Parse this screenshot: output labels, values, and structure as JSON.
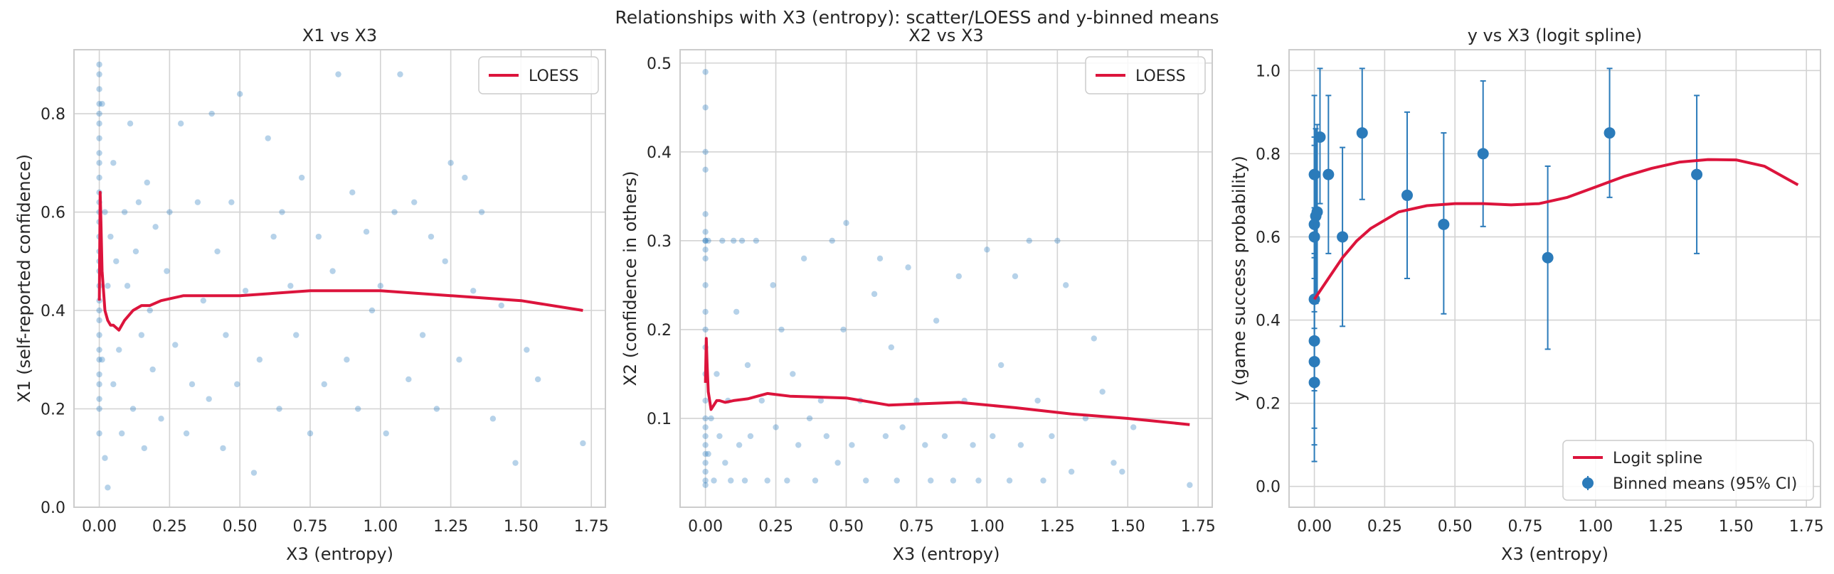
{
  "suptitle": "Relationships with X3 (entropy): scatter/LOESS and y-binned means",
  "colors": {
    "scatter": "#2f7fc1",
    "loess": "#dc143c",
    "binned": "#2b7bba",
    "grid": "#d3d3d3",
    "frame": "#cccccc"
  },
  "chart_data": [
    {
      "type": "scatter",
      "title": "X1 vs X3",
      "xlabel": "X3 (entropy)",
      "ylabel": "X1 (self-reported confidence)",
      "xlim": [
        -0.09,
        1.8
      ],
      "ylim": [
        0.0,
        0.93
      ],
      "xticks": [
        0.0,
        0.25,
        0.5,
        0.75,
        1.0,
        1.25,
        1.5,
        1.75
      ],
      "xtick_labels": [
        "0.00",
        "0.25",
        "0.50",
        "0.75",
        "1.00",
        "1.25",
        "1.50",
        "1.75"
      ],
      "yticks": [
        0.0,
        0.2,
        0.4,
        0.6,
        0.8
      ],
      "ytick_labels": [
        "0.0",
        "0.2",
        "0.4",
        "0.6",
        "0.8"
      ],
      "grid": true,
      "legend": {
        "placement": "top-right",
        "entries": [
          "LOESS"
        ]
      },
      "series": [
        {
          "name": "LOESS",
          "kind": "line",
          "x": [
            0.0,
            0.003,
            0.006,
            0.01,
            0.015,
            0.02,
            0.03,
            0.04,
            0.05,
            0.07,
            0.09,
            0.12,
            0.15,
            0.18,
            0.22,
            0.3,
            0.5,
            0.75,
            1.0,
            1.25,
            1.5,
            1.72
          ],
          "y": [
            0.42,
            0.64,
            0.58,
            0.48,
            0.44,
            0.4,
            0.38,
            0.37,
            0.37,
            0.36,
            0.38,
            0.4,
            0.41,
            0.41,
            0.42,
            0.43,
            0.43,
            0.44,
            0.44,
            0.43,
            0.42,
            0.4
          ]
        },
        {
          "kind": "scatter",
          "x": [
            0.0,
            0.0,
            0.0,
            0.0,
            0.0,
            0.0,
            0.0,
            0.0,
            0.0,
            0.0,
            0.0,
            0.0,
            0.0,
            0.0,
            0.0,
            0.0,
            0.0,
            0.0,
            0.0,
            0.0,
            0.0,
            0.0,
            0.0,
            0.0,
            0.0,
            0.0,
            0.0,
            0.0,
            0.0,
            0.0,
            0.01,
            0.01,
            0.02,
            0.02,
            0.03,
            0.03,
            0.04,
            0.05,
            0.05,
            0.06,
            0.07,
            0.08,
            0.09,
            0.1,
            0.11,
            0.12,
            0.13,
            0.14,
            0.15,
            0.16,
            0.17,
            0.18,
            0.19,
            0.2,
            0.22,
            0.24,
            0.25,
            0.27,
            0.29,
            0.31,
            0.33,
            0.35,
            0.37,
            0.39,
            0.4,
            0.42,
            0.44,
            0.45,
            0.47,
            0.49,
            0.5,
            0.52,
            0.55,
            0.57,
            0.6,
            0.62,
            0.64,
            0.65,
            0.68,
            0.7,
            0.72,
            0.75,
            0.78,
            0.8,
            0.83,
            0.85,
            0.88,
            0.9,
            0.92,
            0.95,
            0.97,
            1.0,
            1.02,
            1.05,
            1.07,
            1.1,
            1.12,
            1.15,
            1.18,
            1.2,
            1.23,
            1.25,
            1.28,
            1.3,
            1.33,
            1.36,
            1.4,
            1.43,
            1.48,
            1.52,
            1.56,
            1.72
          ],
          "y": [
            0.9,
            0.88,
            0.85,
            0.82,
            0.8,
            0.78,
            0.75,
            0.72,
            0.7,
            0.67,
            0.64,
            0.62,
            0.6,
            0.58,
            0.55,
            0.52,
            0.5,
            0.48,
            0.45,
            0.42,
            0.4,
            0.38,
            0.35,
            0.32,
            0.3,
            0.27,
            0.25,
            0.22,
            0.2,
            0.15,
            0.82,
            0.3,
            0.6,
            0.1,
            0.45,
            0.04,
            0.55,
            0.25,
            0.7,
            0.5,
            0.32,
            0.15,
            0.6,
            0.45,
            0.78,
            0.2,
            0.52,
            0.62,
            0.35,
            0.12,
            0.66,
            0.4,
            0.28,
            0.57,
            0.18,
            0.48,
            0.6,
            0.33,
            0.78,
            0.15,
            0.25,
            0.62,
            0.42,
            0.22,
            0.8,
            0.52,
            0.12,
            0.35,
            0.62,
            0.25,
            0.84,
            0.44,
            0.07,
            0.3,
            0.75,
            0.55,
            0.2,
            0.6,
            0.45,
            0.35,
            0.67,
            0.15,
            0.55,
            0.25,
            0.48,
            0.88,
            0.3,
            0.64,
            0.2,
            0.56,
            0.4,
            0.45,
            0.15,
            0.6,
            0.88,
            0.26,
            0.62,
            0.35,
            0.55,
            0.2,
            0.5,
            0.7,
            0.3,
            0.67,
            0.44,
            0.6,
            0.18,
            0.41,
            0.09,
            0.32,
            0.26,
            0.13
          ]
        }
      ]
    },
    {
      "type": "scatter",
      "title": "X2 vs X3",
      "xlabel": "X3 (entropy)",
      "ylabel": "X2 (confidence in others)",
      "xlim": [
        -0.09,
        1.8
      ],
      "ylim": [
        0.0,
        0.515
      ],
      "xticks": [
        0.0,
        0.25,
        0.5,
        0.75,
        1.0,
        1.25,
        1.5,
        1.75
      ],
      "xtick_labels": [
        "0.00",
        "0.25",
        "0.50",
        "0.75",
        "1.00",
        "1.25",
        "1.50",
        "1.75"
      ],
      "yticks": [
        0.1,
        0.2,
        0.3,
        0.4,
        0.5
      ],
      "ytick_labels": [
        "0.1",
        "0.2",
        "0.3",
        "0.4",
        "0.5"
      ],
      "grid": true,
      "legend": {
        "placement": "top-right",
        "entries": [
          "LOESS"
        ]
      },
      "series": [
        {
          "name": "LOESS",
          "kind": "line",
          "x": [
            0.0,
            0.003,
            0.006,
            0.01,
            0.015,
            0.02,
            0.03,
            0.04,
            0.05,
            0.07,
            0.1,
            0.15,
            0.22,
            0.3,
            0.5,
            0.65,
            0.9,
            1.1,
            1.3,
            1.5,
            1.72
          ],
          "y": [
            0.14,
            0.19,
            0.16,
            0.13,
            0.12,
            0.11,
            0.115,
            0.12,
            0.12,
            0.118,
            0.12,
            0.122,
            0.128,
            0.125,
            0.123,
            0.115,
            0.118,
            0.112,
            0.105,
            0.1,
            0.093
          ]
        },
        {
          "kind": "scatter",
          "x": [
            0.0,
            0.0,
            0.0,
            0.0,
            0.0,
            0.0,
            0.0,
            0.0,
            0.0,
            0.0,
            0.0,
            0.0,
            0.0,
            0.0,
            0.0,
            0.0,
            0.0,
            0.0,
            0.0,
            0.0,
            0.0,
            0.0,
            0.0,
            0.0,
            0.0,
            0.01,
            0.01,
            0.02,
            0.03,
            0.04,
            0.05,
            0.06,
            0.07,
            0.08,
            0.09,
            0.1,
            0.11,
            0.12,
            0.13,
            0.14,
            0.15,
            0.16,
            0.18,
            0.2,
            0.22,
            0.24,
            0.25,
            0.27,
            0.29,
            0.31,
            0.33,
            0.35,
            0.37,
            0.39,
            0.41,
            0.43,
            0.45,
            0.47,
            0.49,
            0.5,
            0.52,
            0.55,
            0.57,
            0.6,
            0.62,
            0.64,
            0.66,
            0.68,
            0.7,
            0.72,
            0.75,
            0.78,
            0.8,
            0.82,
            0.85,
            0.88,
            0.9,
            0.92,
            0.95,
            0.97,
            1.0,
            1.02,
            1.05,
            1.08,
            1.1,
            1.12,
            1.15,
            1.18,
            1.2,
            1.23,
            1.25,
            1.28,
            1.3,
            1.35,
            1.38,
            1.41,
            1.45,
            1.48,
            1.52,
            1.72
          ],
          "y": [
            0.49,
            0.45,
            0.4,
            0.38,
            0.33,
            0.31,
            0.3,
            0.3,
            0.29,
            0.28,
            0.25,
            0.22,
            0.2,
            0.18,
            0.15,
            0.12,
            0.1,
            0.09,
            0.08,
            0.07,
            0.06,
            0.05,
            0.04,
            0.03,
            0.025,
            0.3,
            0.06,
            0.1,
            0.03,
            0.15,
            0.08,
            0.3,
            0.05,
            0.12,
            0.03,
            0.3,
            0.22,
            0.07,
            0.3,
            0.03,
            0.16,
            0.08,
            0.3,
            0.12,
            0.03,
            0.25,
            0.09,
            0.2,
            0.03,
            0.15,
            0.07,
            0.28,
            0.1,
            0.03,
            0.12,
            0.08,
            0.3,
            0.05,
            0.2,
            0.32,
            0.07,
            0.12,
            0.03,
            0.24,
            0.28,
            0.08,
            0.18,
            0.03,
            0.09,
            0.27,
            0.12,
            0.07,
            0.03,
            0.21,
            0.08,
            0.03,
            0.26,
            0.12,
            0.07,
            0.03,
            0.29,
            0.08,
            0.16,
            0.03,
            0.26,
            0.07,
            0.3,
            0.12,
            0.03,
            0.08,
            0.3,
            0.25,
            0.04,
            0.1,
            0.19,
            0.13,
            0.05,
            0.04,
            0.09,
            0.025
          ]
        }
      ]
    },
    {
      "type": "line",
      "title": "y vs X3 (logit spline)",
      "xlabel": "X3 (entropy)",
      "ylabel": "y (game success probability)",
      "xlim": [
        -0.09,
        1.8
      ],
      "ylim": [
        -0.05,
        1.05
      ],
      "xticks": [
        0.0,
        0.25,
        0.5,
        0.75,
        1.0,
        1.25,
        1.5,
        1.75
      ],
      "xtick_labels": [
        "0.00",
        "0.25",
        "0.50",
        "0.75",
        "1.00",
        "1.25",
        "1.50",
        "1.75"
      ],
      "yticks": [
        0.0,
        0.2,
        0.4,
        0.6,
        0.8,
        1.0
      ],
      "ytick_labels": [
        "0.0",
        "0.2",
        "0.4",
        "0.6",
        "0.8",
        "1.0"
      ],
      "grid": true,
      "legend": {
        "placement": "bottom-right",
        "entries": [
          "Logit spline",
          "Binned means (95% CI)"
        ]
      },
      "series": [
        {
          "name": "Logit spline",
          "kind": "line",
          "x": [
            0.0,
            0.05,
            0.1,
            0.15,
            0.2,
            0.3,
            0.4,
            0.5,
            0.6,
            0.7,
            0.8,
            0.9,
            1.0,
            1.1,
            1.2,
            1.3,
            1.4,
            1.5,
            1.6,
            1.72
          ],
          "y": [
            0.45,
            0.5,
            0.55,
            0.59,
            0.62,
            0.66,
            0.675,
            0.68,
            0.68,
            0.677,
            0.68,
            0.695,
            0.72,
            0.745,
            0.765,
            0.78,
            0.786,
            0.785,
            0.77,
            0.725
          ]
        },
        {
          "name": "Binned means (95% CI)",
          "kind": "errorbar",
          "x": [
            0.0,
            0.0,
            0.0,
            0.0,
            0.0,
            0.0,
            0.0,
            0.005,
            0.01,
            0.02,
            0.05,
            0.1,
            0.17,
            0.33,
            0.46,
            0.6,
            0.83,
            1.05,
            1.36
          ],
          "y": [
            0.25,
            0.3,
            0.35,
            0.45,
            0.6,
            0.63,
            0.75,
            0.65,
            0.66,
            0.84,
            0.75,
            0.6,
            0.85,
            0.7,
            0.63,
            0.8,
            0.55,
            0.85,
            0.75
          ],
          "lower": [
            0.06,
            0.1,
            0.14,
            0.23,
            0.38,
            0.42,
            0.55,
            0.44,
            0.45,
            0.68,
            0.56,
            0.385,
            0.69,
            0.5,
            0.415,
            0.625,
            0.33,
            0.695,
            0.56
          ],
          "upper": [
            0.44,
            0.5,
            0.56,
            0.67,
            0.82,
            0.84,
            0.94,
            0.86,
            0.87,
            1.005,
            0.94,
            0.815,
            1.005,
            0.9,
            0.85,
            0.975,
            0.77,
            1.005,
            0.94
          ]
        }
      ]
    }
  ]
}
